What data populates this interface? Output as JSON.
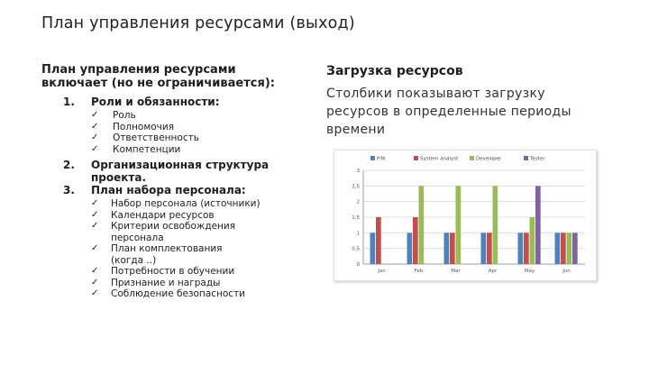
{
  "slide": {
    "title": "План управления ресурсами (выход)"
  },
  "left": {
    "heading_line1": "План управления ресурсами",
    "heading_line2": "включает (но не ограничивается):",
    "items": [
      {
        "num": "1.",
        "text": "Роли и обязанности:",
        "subitems": [
          "Роль",
          "Полномочия",
          "Ответственность",
          "Компетенции"
        ]
      },
      {
        "num": "2.",
        "text_line1": "Организационная структура",
        "text_line2": "проекта."
      },
      {
        "num": "3.",
        "text": "План набора персонала:",
        "subitems": [
          [
            "Набор персонала (источники)"
          ],
          [
            "Календари ресурсов"
          ],
          [
            "Критерии освобождения",
            "персонала"
          ],
          [
            "План комплектования",
            "(когда ..)"
          ],
          [
            "Потребности в обучении"
          ],
          [
            "Признание и награды"
          ],
          [
            "Соблюдение безопасности"
          ]
        ]
      }
    ],
    "check_glyph": "✓"
  },
  "right": {
    "heading": "Загрузка ресурсов",
    "text_lines": [
      "Столбики показывают загрузку",
      "ресурсов в определенные периоды",
      "времени"
    ]
  },
  "chart_data": {
    "type": "bar",
    "categories": [
      "Jan",
      "Feb",
      "Mar",
      "Apr",
      "May",
      "Jun"
    ],
    "series": [
      {
        "name": "P.M.",
        "color": "#4f81bd",
        "values": [
          1.0,
          1.0,
          1.0,
          1.0,
          1.0,
          1.0
        ]
      },
      {
        "name": "System analyst",
        "color": "#c0504d",
        "values": [
          1.5,
          1.5,
          1.0,
          1.0,
          1.0,
          1.0
        ]
      },
      {
        "name": "Developer",
        "color": "#9bbb59",
        "values": [
          0,
          2.5,
          2.5,
          2.5,
          1.5,
          1.0
        ]
      },
      {
        "name": "Tester",
        "color": "#8064a2",
        "values": [
          0,
          0,
          0,
          0,
          2.5,
          1.0
        ]
      }
    ],
    "yticks": [
      "0",
      "0,5",
      "1",
      "1,5",
      "2",
      "2,5",
      "3"
    ],
    "ylim": [
      0,
      3
    ],
    "grid": true,
    "legend": "top"
  }
}
